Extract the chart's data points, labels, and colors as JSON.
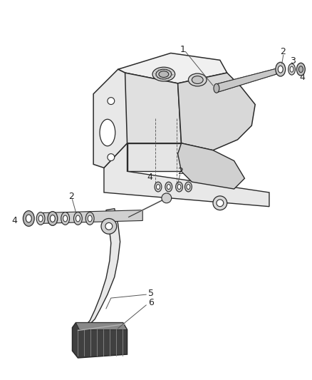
{
  "background_color": "#ffffff",
  "line_color": "#2a2a2a",
  "label_color": "#222222",
  "fig_width": 4.38,
  "fig_height": 5.33,
  "dpi": 100
}
